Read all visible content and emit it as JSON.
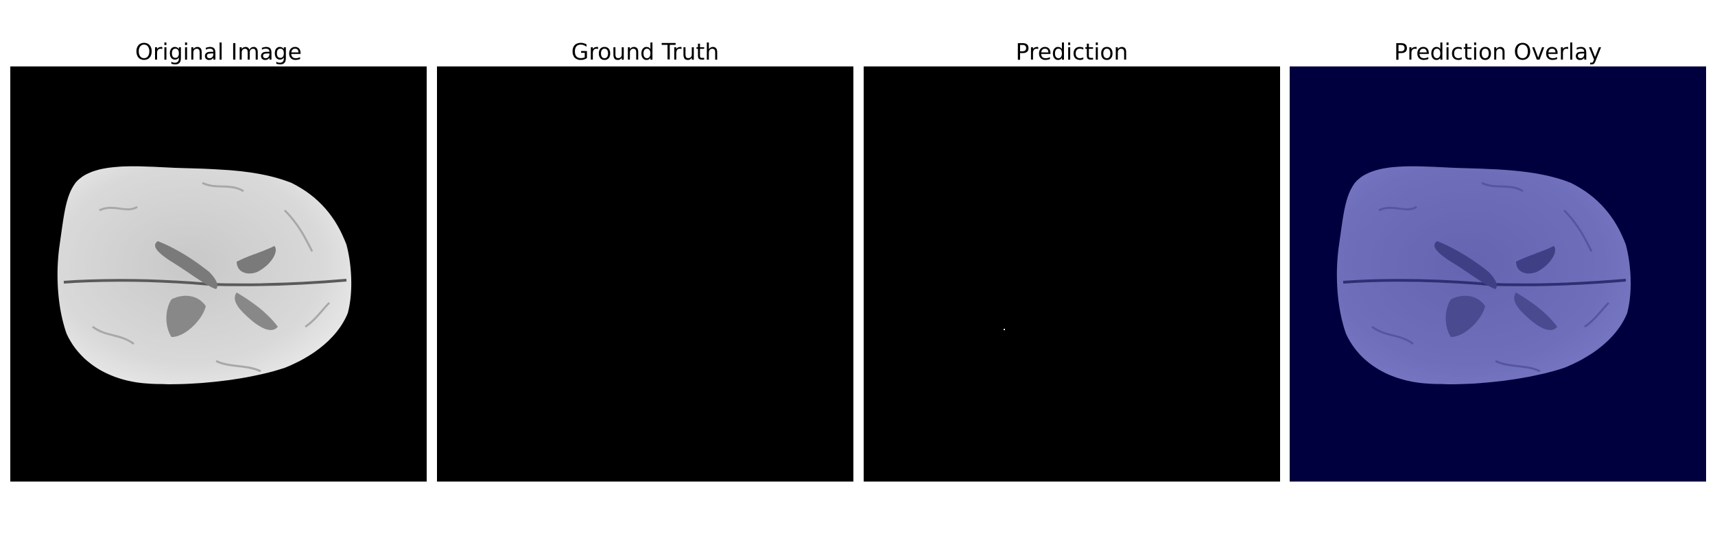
{
  "panels": [
    {
      "title": "Original Image"
    },
    {
      "title": "Ground Truth"
    },
    {
      "title": "Prediction"
    },
    {
      "title": "Prediction Overlay"
    }
  ],
  "colors": {
    "background": "#000000",
    "overlay_background": "#00003e",
    "brain_gray": "#d8d8d8",
    "brain_overlay": "#6e6eba"
  }
}
